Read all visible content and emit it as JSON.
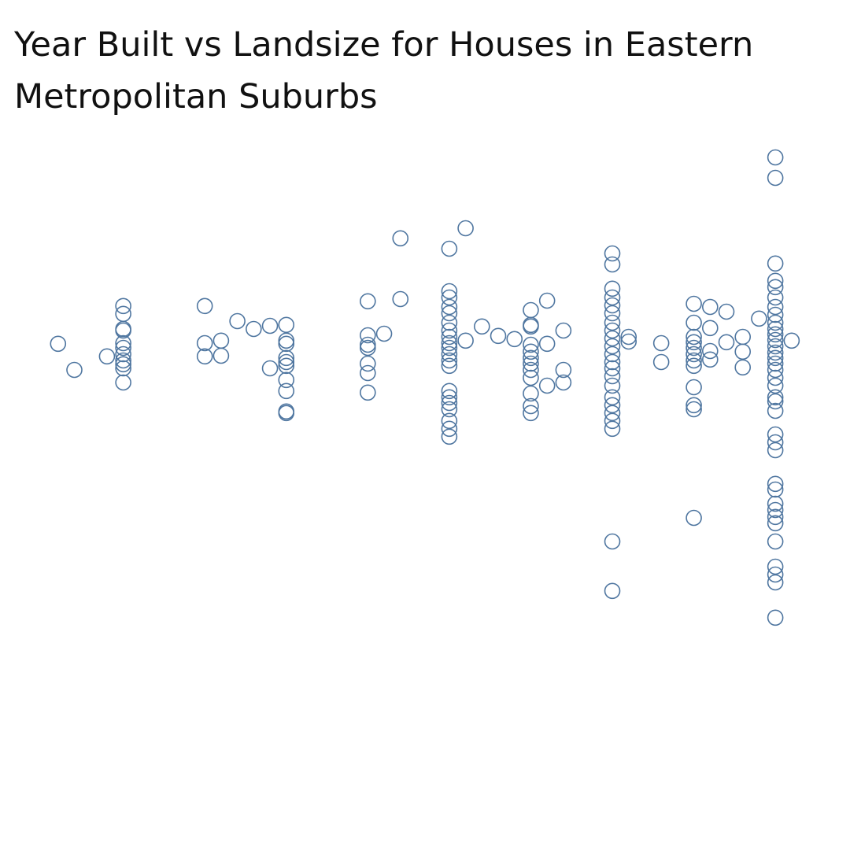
{
  "chart_data": {
    "type": "scatter",
    "title": "Year Built vs Landsize for Houses in Eastern Metropolitan Suburbs",
    "color": "#4f76a0",
    "xlim": [
      1887,
      1988
    ],
    "ylim": [
      0,
      2000
    ],
    "x": [
      1892,
      1894,
      1898,
      1900,
      1900,
      1900,
      1900,
      1900,
      1900,
      1900,
      1900,
      1900,
      1900,
      1900,
      1910,
      1910,
      1910,
      1912,
      1912,
      1914,
      1916,
      1918,
      1918,
      1920,
      1920,
      1920,
      1920,
      1920,
      1920,
      1920,
      1920,
      1920,
      1920,
      1930,
      1930,
      1930,
      1930,
      1930,
      1930,
      1930,
      1932,
      1934,
      1934,
      1940,
      1940,
      1940,
      1940,
      1940,
      1940,
      1940,
      1940,
      1940,
      1940,
      1940,
      1940,
      1940,
      1940,
      1940,
      1940,
      1940,
      1940,
      1940,
      1940,
      1942,
      1942,
      1944,
      1946,
      1948,
      1950,
      1950,
      1950,
      1950,
      1950,
      1950,
      1950,
      1950,
      1950,
      1950,
      1950,
      1950,
      1952,
      1952,
      1952,
      1954,
      1954,
      1954,
      1960,
      1960,
      1960,
      1960,
      1960,
      1960,
      1960,
      1960,
      1960,
      1960,
      1960,
      1960,
      1960,
      1960,
      1960,
      1960,
      1960,
      1960,
      1960,
      1960,
      1960,
      1960,
      1962,
      1962,
      1966,
      1966,
      1970,
      1970,
      1970,
      1970,
      1970,
      1970,
      1970,
      1970,
      1970,
      1970,
      1970,
      1970,
      1972,
      1972,
      1972,
      1972,
      1974,
      1974,
      1976,
      1976,
      1976,
      1978,
      1980,
      1980,
      1980,
      1980,
      1980,
      1980,
      1980,
      1980,
      1980,
      1980,
      1980,
      1980,
      1980,
      1980,
      1980,
      1980,
      1980,
      1980,
      1980,
      1980,
      1980,
      1980,
      1980,
      1980,
      1980,
      1980,
      1980,
      1980,
      1980,
      1980,
      1980,
      1980,
      1980,
      1980,
      1980,
      1980,
      1982
    ],
    "y": [
      1158,
      1075,
      1118,
      1278,
      1253,
      1205,
      1200,
      1160,
      1145,
      1125,
      1105,
      1093,
      1080,
      1035,
      1278,
      1160,
      1118,
      1168,
      1120,
      1230,
      1205,
      1215,
      1080,
      1218,
      1168,
      1158,
      1113,
      1100,
      1088,
      1043,
      1008,
      943,
      938,
      1293,
      1185,
      1155,
      1145,
      1095,
      1065,
      1003,
      1190,
      1493,
      1300,
      1460,
      1325,
      1305,
      1275,
      1255,
      1225,
      1200,
      1180,
      1160,
      1145,
      1125,
      1105,
      1088,
      1008,
      988,
      970,
      950,
      913,
      888,
      863,
      1525,
      1168,
      1213,
      1183,
      1173,
      1265,
      1218,
      1213,
      1155,
      1133,
      1113,
      1095,
      1075,
      1050,
      1000,
      960,
      938,
      1295,
      1158,
      1025,
      1200,
      1075,
      1035,
      1445,
      1410,
      1333,
      1305,
      1280,
      1255,
      1225,
      1200,
      1175,
      1150,
      1125,
      1100,
      1080,
      1055,
      1025,
      988,
      963,
      938,
      913,
      888,
      530,
      373,
      1180,
      1165,
      1160,
      1100,
      1285,
      1225,
      1180,
      1163,
      1145,
      1125,
      1105,
      1088,
      1020,
      963,
      950,
      605,
      1275,
      1208,
      1135,
      1108,
      1260,
      1163,
      1180,
      1133,
      1083,
      1238,
      1750,
      1685,
      1413,
      1358,
      1338,
      1305,
      1275,
      1250,
      1225,
      1205,
      1188,
      1170,
      1150,
      1130,
      1113,
      1095,
      1075,
      1050,
      1025,
      988,
      975,
      945,
      870,
      845,
      820,
      713,
      695,
      650,
      630,
      608,
      588,
      530,
      450,
      425,
      400,
      288,
      1168
    ]
  }
}
